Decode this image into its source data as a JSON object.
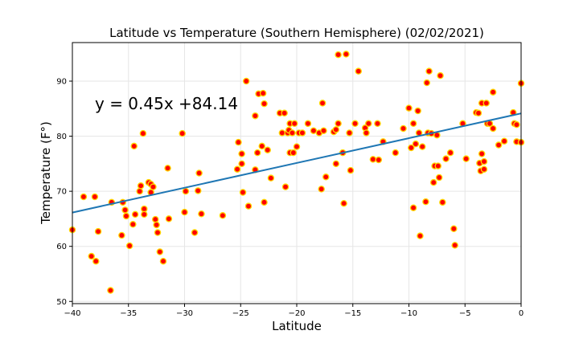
{
  "chart_data": {
    "type": "scatter",
    "title": "Latitude vs Temperature (Southern Hemisphere) (02/02/2021)",
    "xlabel": "Latitude",
    "ylabel": "Temperature (F°)",
    "xlim": [
      -40,
      0
    ],
    "ylim": [
      49.6,
      97.0
    ],
    "xticks": [
      -40,
      -35,
      -30,
      -25,
      -20,
      -15,
      -10,
      -5,
      0
    ],
    "yticks": [
      50,
      60,
      70,
      80,
      90
    ],
    "grid": true,
    "regression": {
      "slope": 0.45,
      "intercept": 84.14,
      "label": "y = 0.45x +84.14",
      "color": "#1f77b4"
    },
    "marker": {
      "face": "#ff0000",
      "edge": "#ffd700"
    },
    "points": [
      [
        -40.0,
        63.0
      ],
      [
        -39.0,
        69.0
      ],
      [
        -38.3,
        58.2
      ],
      [
        -37.9,
        57.3
      ],
      [
        -37.7,
        62.7
      ],
      [
        -38.0,
        69.0
      ],
      [
        -36.6,
        52.0
      ],
      [
        -36.5,
        68.0
      ],
      [
        -35.6,
        62.0
      ],
      [
        -35.5,
        68.0
      ],
      [
        -35.3,
        66.6
      ],
      [
        -35.2,
        65.5
      ],
      [
        -34.9,
        60.1
      ],
      [
        -34.6,
        64.0
      ],
      [
        -34.5,
        78.2
      ],
      [
        -34.4,
        65.8
      ],
      [
        -34.0,
        70.0
      ],
      [
        -33.9,
        71.0
      ],
      [
        -33.7,
        80.5
      ],
      [
        -33.6,
        66.8
      ],
      [
        -33.6,
        65.8
      ],
      [
        -33.2,
        71.6
      ],
      [
        -33.0,
        71.3
      ],
      [
        -33.0,
        69.8
      ],
      [
        -32.8,
        70.8
      ],
      [
        -32.6,
        64.9
      ],
      [
        -32.5,
        63.9
      ],
      [
        -32.4,
        62.5
      ],
      [
        -32.2,
        59.0
      ],
      [
        -31.9,
        57.3
      ],
      [
        -31.5,
        74.2
      ],
      [
        -31.4,
        65.0
      ],
      [
        -30.2,
        80.5
      ],
      [
        -29.9,
        70.0
      ],
      [
        -30.0,
        66.2
      ],
      [
        -29.1,
        62.5
      ],
      [
        -28.8,
        70.1
      ],
      [
        -28.7,
        73.3
      ],
      [
        -28.5,
        65.9
      ],
      [
        -26.6,
        65.6
      ],
      [
        -25.3,
        74.0
      ],
      [
        -25.2,
        78.9
      ],
      [
        -24.9,
        76.8
      ],
      [
        -24.9,
        75.0
      ],
      [
        -24.8,
        69.8
      ],
      [
        -24.5,
        90.0
      ],
      [
        -24.3,
        67.3
      ],
      [
        -23.7,
        73.9
      ],
      [
        -23.7,
        83.7
      ],
      [
        -23.5,
        77.0
      ],
      [
        -23.4,
        87.7
      ],
      [
        -23.1,
        78.2
      ],
      [
        -23.0,
        87.8
      ],
      [
        -22.9,
        85.9
      ],
      [
        -22.9,
        68.0
      ],
      [
        -22.6,
        77.5
      ],
      [
        -22.3,
        72.4
      ],
      [
        -21.5,
        84.2
      ],
      [
        -21.3,
        80.6
      ],
      [
        -21.1,
        84.2
      ],
      [
        -21.0,
        70.8
      ],
      [
        -20.8,
        80.6
      ],
      [
        -20.7,
        81.1
      ],
      [
        -20.6,
        82.3
      ],
      [
        -20.6,
        77.0
      ],
      [
        -20.4,
        80.6
      ],
      [
        -20.3,
        77.0
      ],
      [
        -20.2,
        82.3
      ],
      [
        -20.0,
        78.1
      ],
      [
        -19.8,
        80.6
      ],
      [
        -19.5,
        80.6
      ],
      [
        -19.0,
        82.3
      ],
      [
        -18.5,
        81.0
      ],
      [
        -18.0,
        80.6
      ],
      [
        -17.8,
        70.4
      ],
      [
        -17.7,
        86.0
      ],
      [
        -17.6,
        81.0
      ],
      [
        -17.4,
        72.6
      ],
      [
        -16.7,
        80.8
      ],
      [
        -16.5,
        81.2
      ],
      [
        -16.5,
        75.0
      ],
      [
        -16.3,
        82.3
      ],
      [
        -16.3,
        94.8
      ],
      [
        -15.9,
        77.0
      ],
      [
        -15.8,
        67.8
      ],
      [
        -15.6,
        94.9
      ],
      [
        -15.3,
        80.6
      ],
      [
        -15.2,
        73.8
      ],
      [
        -14.8,
        82.3
      ],
      [
        -14.5,
        91.8
      ],
      [
        -13.9,
        81.5
      ],
      [
        -13.8,
        80.6
      ],
      [
        -13.6,
        82.3
      ],
      [
        -13.2,
        75.8
      ],
      [
        -12.8,
        82.3
      ],
      [
        -12.7,
        75.7
      ],
      [
        -12.3,
        79.0
      ],
      [
        -11.2,
        77.0
      ],
      [
        -10.5,
        81.4
      ],
      [
        -10.0,
        85.1
      ],
      [
        -9.8,
        77.9
      ],
      [
        -9.6,
        82.3
      ],
      [
        -9.6,
        67.0
      ],
      [
        -9.4,
        78.6
      ],
      [
        -9.2,
        84.6
      ],
      [
        -9.1,
        80.6
      ],
      [
        -9.0,
        61.9
      ],
      [
        -8.8,
        78.1
      ],
      [
        -8.5,
        68.1
      ],
      [
        -8.4,
        89.7
      ],
      [
        -8.3,
        80.6
      ],
      [
        -8.2,
        91.8
      ],
      [
        -8.0,
        80.5
      ],
      [
        -7.8,
        71.6
      ],
      [
        -7.7,
        74.6
      ],
      [
        -7.5,
        80.2
      ],
      [
        -7.4,
        74.6
      ],
      [
        -7.3,
        72.5
      ],
      [
        -7.2,
        91.0
      ],
      [
        -7.0,
        68.0
      ],
      [
        -6.7,
        75.9
      ],
      [
        -6.3,
        77.0
      ],
      [
        -6.0,
        63.2
      ],
      [
        -5.9,
        60.2
      ],
      [
        -5.2,
        82.3
      ],
      [
        -4.9,
        75.9
      ],
      [
        -4.0,
        84.3
      ],
      [
        -3.8,
        84.2
      ],
      [
        -3.7,
        75.1
      ],
      [
        -3.6,
        73.7
      ],
      [
        -3.5,
        86.0
      ],
      [
        -3.5,
        76.8
      ],
      [
        -3.3,
        74.0
      ],
      [
        -3.3,
        75.4
      ],
      [
        -3.1,
        86.0
      ],
      [
        -3.0,
        82.3
      ],
      [
        -2.8,
        82.3
      ],
      [
        -2.5,
        88.0
      ],
      [
        -2.5,
        81.4
      ],
      [
        -2.0,
        78.4
      ],
      [
        -1.5,
        79.1
      ],
      [
        -0.7,
        84.3
      ],
      [
        -0.6,
        82.3
      ],
      [
        -0.4,
        82.1
      ],
      [
        -0.4,
        79.0
      ],
      [
        0.0,
        89.6
      ],
      [
        0.0,
        78.9
      ]
    ]
  }
}
